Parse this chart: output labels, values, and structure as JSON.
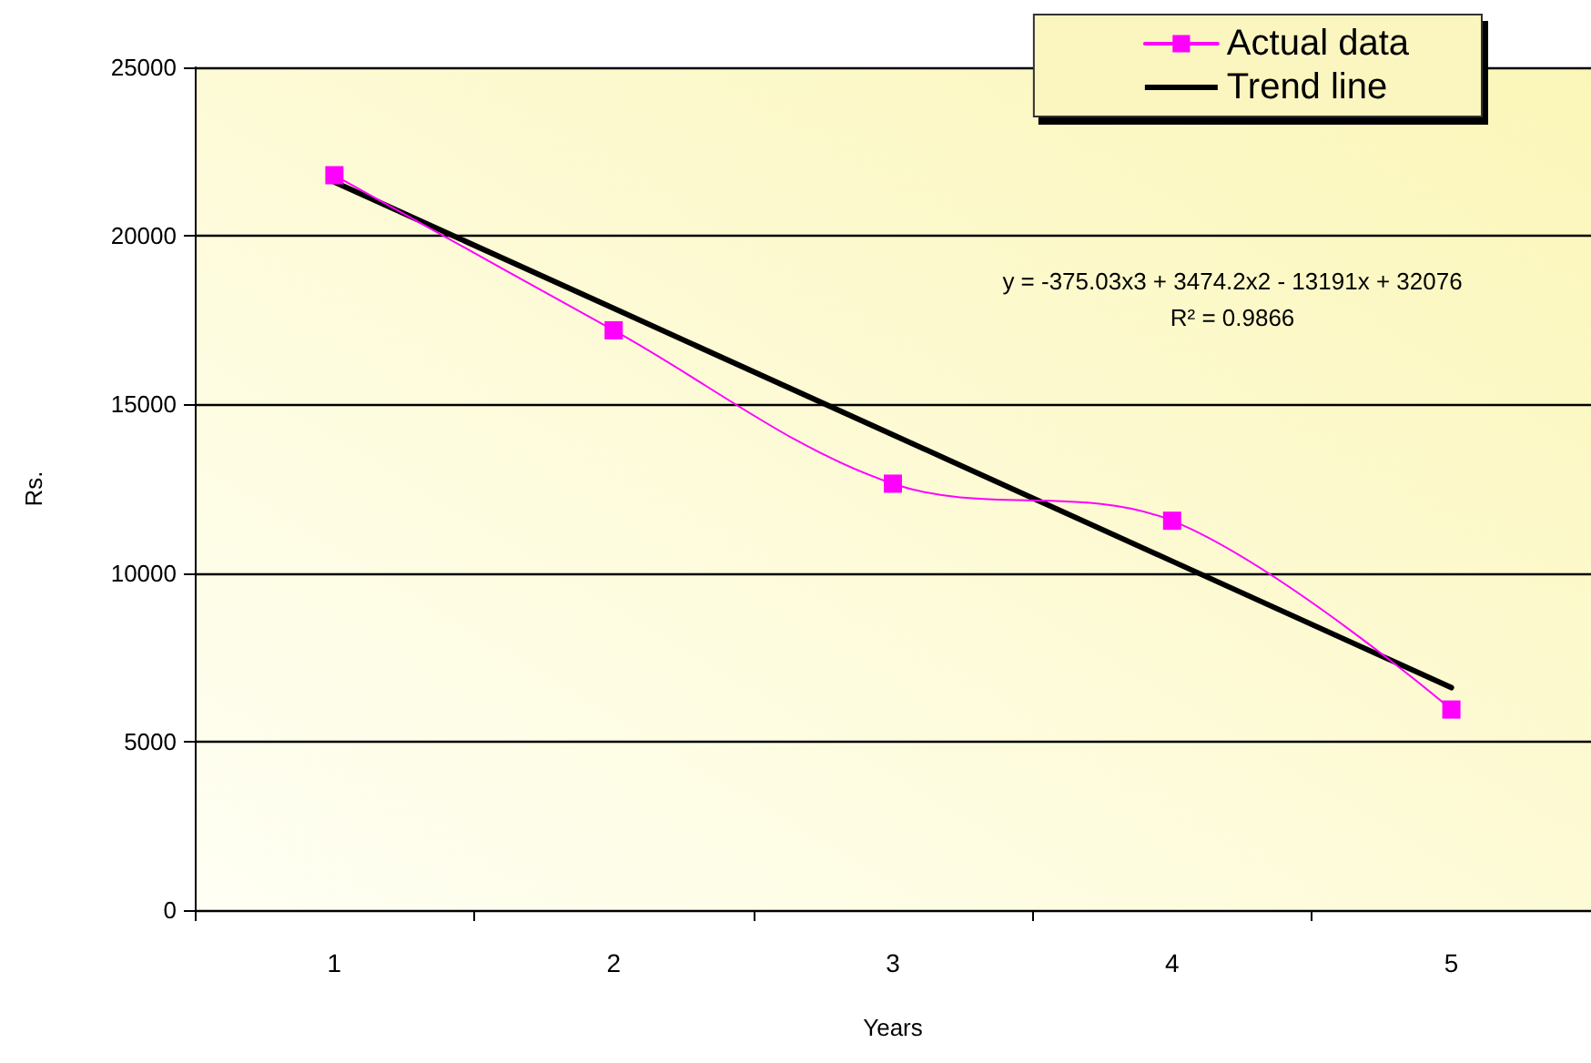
{
  "chart_data": {
    "type": "line",
    "xlabel": "Years",
    "ylabel": "Rs.",
    "categories": [
      "1",
      "2",
      "3",
      "4",
      "5"
    ],
    "series": [
      {
        "name": "Actual data",
        "color": "#ff00ff",
        "marker": "square",
        "values": [
          21800,
          17200,
          12650,
          11550,
          5950
        ]
      },
      {
        "name": "Trend line",
        "color": "#000000",
        "marker": "none",
        "values": [
          21600,
          17850,
          14100,
          10350,
          6600
        ]
      }
    ],
    "ylim": [
      0,
      25000
    ],
    "yticks": [
      0,
      5000,
      10000,
      15000,
      20000,
      25000
    ],
    "grid": "y",
    "legend": "top right",
    "annotations": [
      "y = -375.03x3 + 3474.2x2 - 13191x + 32076",
      "R² = 0.9866"
    ]
  }
}
